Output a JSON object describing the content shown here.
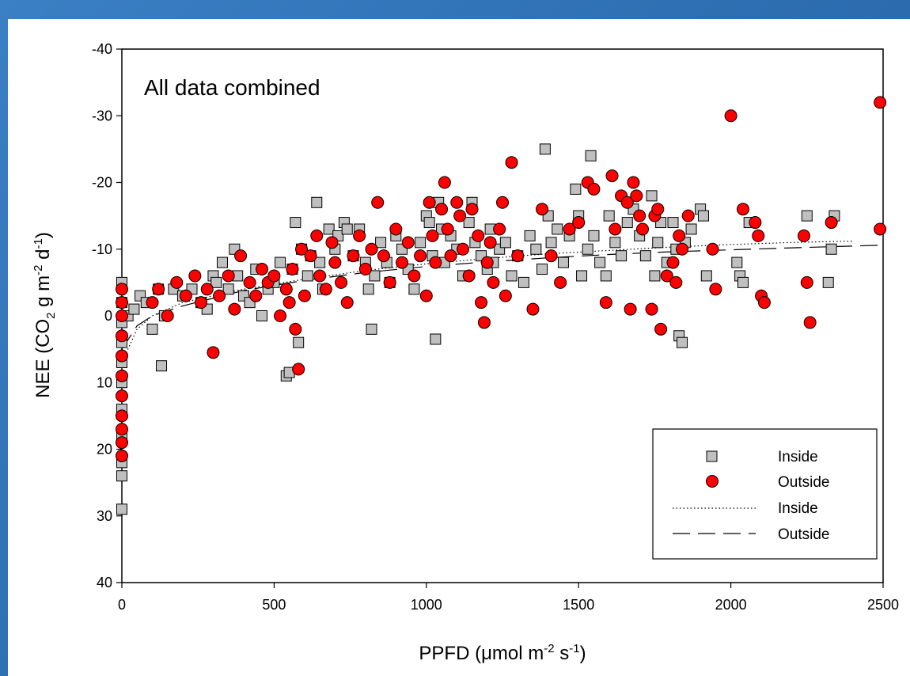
{
  "chart_data": {
    "type": "scatter",
    "annotation": "All data combined",
    "xlabel": {
      "base": "PPFD (",
      "mu": "μ",
      "rest": "mol m",
      "sup1": "-2",
      "mid": " s",
      "sup2": "-1",
      "end": ")"
    },
    "ylabel": {
      "pre": "NEE (CO",
      "sub": "2",
      "mid1": " g m",
      "sup1": "-2",
      "mid2": " d",
      "sup2": "-1",
      "end": ")"
    },
    "xlim": [
      0,
      2500
    ],
    "ylim": [
      -40,
      40
    ],
    "y_inverted": true,
    "x_ticks": [
      "0",
      "500",
      "1000",
      "1500",
      "2000",
      "2500"
    ],
    "y_ticks": [
      "-40",
      "-30",
      "-20",
      "-10",
      "0",
      "10",
      "20",
      "30",
      "40"
    ],
    "grid": false,
    "legend_position": "bottom-right",
    "colors": {
      "inside_fill": "#c0c0c0",
      "outside_fill": "#ff0000",
      "marker_edge": "#000000",
      "background": "#2f6fb0"
    },
    "series": [
      {
        "name": "Inside",
        "kind": "points",
        "marker": "square",
        "points": [
          [
            0,
            29
          ],
          [
            0,
            24
          ],
          [
            0,
            22
          ],
          [
            0,
            18
          ],
          [
            0,
            14
          ],
          [
            0,
            10
          ],
          [
            0,
            7
          ],
          [
            0,
            4
          ],
          [
            0,
            1
          ],
          [
            0,
            -2
          ],
          [
            0,
            -5
          ],
          [
            20,
            0
          ],
          [
            40,
            -1
          ],
          [
            60,
            -3
          ],
          [
            80,
            -2
          ],
          [
            100,
            2
          ],
          [
            120,
            -4
          ],
          [
            130,
            7.5
          ],
          [
            140,
            0
          ],
          [
            170,
            -4
          ],
          [
            200,
            -3
          ],
          [
            230,
            -4
          ],
          [
            260,
            -2
          ],
          [
            280,
            -1
          ],
          [
            300,
            -6
          ],
          [
            310,
            -5
          ],
          [
            330,
            -8
          ],
          [
            350,
            -4
          ],
          [
            370,
            -10
          ],
          [
            380,
            -6
          ],
          [
            400,
            -3
          ],
          [
            420,
            -2
          ],
          [
            440,
            -7
          ],
          [
            460,
            0
          ],
          [
            480,
            -4
          ],
          [
            500,
            -5
          ],
          [
            520,
            -8
          ],
          [
            540,
            9
          ],
          [
            550,
            8.5
          ],
          [
            560,
            -7
          ],
          [
            570,
            -14
          ],
          [
            580,
            4
          ],
          [
            590,
            -10
          ],
          [
            610,
            -6
          ],
          [
            620,
            -9
          ],
          [
            640,
            -17
          ],
          [
            650,
            -8
          ],
          [
            660,
            -4
          ],
          [
            680,
            -13
          ],
          [
            700,
            -10
          ],
          [
            710,
            -12
          ],
          [
            730,
            -14
          ],
          [
            740,
            -13
          ],
          [
            760,
            -9
          ],
          [
            780,
            -13
          ],
          [
            800,
            -8
          ],
          [
            810,
            -4
          ],
          [
            820,
            2
          ],
          [
            830,
            -6
          ],
          [
            850,
            -11
          ],
          [
            870,
            -8
          ],
          [
            880,
            -5
          ],
          [
            900,
            -12
          ],
          [
            920,
            -10
          ],
          [
            940,
            -7
          ],
          [
            960,
            -4
          ],
          [
            980,
            -11
          ],
          [
            1000,
            -15
          ],
          [
            1010,
            -14
          ],
          [
            1020,
            -9
          ],
          [
            1030,
            3.5
          ],
          [
            1040,
            -17
          ],
          [
            1050,
            -13
          ],
          [
            1060,
            -8
          ],
          [
            1080,
            -12
          ],
          [
            1100,
            -10
          ],
          [
            1120,
            -6
          ],
          [
            1140,
            -14
          ],
          [
            1150,
            -17
          ],
          [
            1160,
            -11
          ],
          [
            1180,
            -9
          ],
          [
            1200,
            -7
          ],
          [
            1210,
            -13
          ],
          [
            1220,
            -8
          ],
          [
            1240,
            -10
          ],
          [
            1260,
            -11
          ],
          [
            1280,
            -6
          ],
          [
            1300,
            -9
          ],
          [
            1320,
            -5
          ],
          [
            1340,
            -12
          ],
          [
            1360,
            -10
          ],
          [
            1380,
            -7
          ],
          [
            1390,
            -25
          ],
          [
            1400,
            -15
          ],
          [
            1410,
            -11
          ],
          [
            1430,
            -13
          ],
          [
            1450,
            -8
          ],
          [
            1470,
            -12
          ],
          [
            1490,
            -19
          ],
          [
            1500,
            -15
          ],
          [
            1510,
            -6
          ],
          [
            1530,
            -10
          ],
          [
            1540,
            -24
          ],
          [
            1550,
            -12
          ],
          [
            1570,
            -8
          ],
          [
            1590,
            -6
          ],
          [
            1600,
            -15
          ],
          [
            1620,
            -11
          ],
          [
            1640,
            -9
          ],
          [
            1660,
            -14
          ],
          [
            1680,
            -16
          ],
          [
            1700,
            -12
          ],
          [
            1720,
            -9
          ],
          [
            1740,
            -18
          ],
          [
            1750,
            -6
          ],
          [
            1760,
            -11
          ],
          [
            1770,
            -14
          ],
          [
            1790,
            -8
          ],
          [
            1810,
            -14
          ],
          [
            1820,
            -10
          ],
          [
            1830,
            3
          ],
          [
            1840,
            4
          ],
          [
            1850,
            -11
          ],
          [
            1870,
            -13
          ],
          [
            1900,
            -16
          ],
          [
            1910,
            -15
          ],
          [
            1920,
            -6
          ],
          [
            2020,
            -8
          ],
          [
            2030,
            -6
          ],
          [
            2040,
            -5
          ],
          [
            2060,
            -14
          ],
          [
            2250,
            -15
          ],
          [
            2320,
            -5
          ],
          [
            2330,
            -10
          ],
          [
            2340,
            -15
          ]
        ]
      },
      {
        "name": "Outside",
        "kind": "points",
        "marker": "circle",
        "points": [
          [
            0,
            21
          ],
          [
            0,
            19
          ],
          [
            0,
            17
          ],
          [
            0,
            15
          ],
          [
            0,
            12
          ],
          [
            0,
            9
          ],
          [
            0,
            6
          ],
          [
            0,
            3
          ],
          [
            0,
            0
          ],
          [
            0,
            -2
          ],
          [
            0,
            -4
          ],
          [
            100,
            -2
          ],
          [
            120,
            -4
          ],
          [
            150,
            0
          ],
          [
            180,
            -5
          ],
          [
            210,
            -3
          ],
          [
            240,
            -6
          ],
          [
            260,
            -2
          ],
          [
            280,
            -4
          ],
          [
            300,
            5.5
          ],
          [
            320,
            -3
          ],
          [
            350,
            -6
          ],
          [
            370,
            -1
          ],
          [
            390,
            -9
          ],
          [
            420,
            -5
          ],
          [
            440,
            -3
          ],
          [
            460,
            -7
          ],
          [
            480,
            -5
          ],
          [
            500,
            -6
          ],
          [
            520,
            0
          ],
          [
            540,
            -4
          ],
          [
            550,
            -2
          ],
          [
            560,
            -7
          ],
          [
            570,
            2
          ],
          [
            580,
            8
          ],
          [
            590,
            -10
          ],
          [
            600,
            -3
          ],
          [
            620,
            -9
          ],
          [
            640,
            -12
          ],
          [
            650,
            -6
          ],
          [
            670,
            -4
          ],
          [
            690,
            -11
          ],
          [
            700,
            -8
          ],
          [
            720,
            -5
          ],
          [
            740,
            -2
          ],
          [
            760,
            -9
          ],
          [
            780,
            -12
          ],
          [
            800,
            -7
          ],
          [
            820,
            -10
          ],
          [
            840,
            -17
          ],
          [
            860,
            -9
          ],
          [
            880,
            -5
          ],
          [
            900,
            -13
          ],
          [
            920,
            -8
          ],
          [
            940,
            -11
          ],
          [
            960,
            -6
          ],
          [
            980,
            -9
          ],
          [
            1000,
            -3
          ],
          [
            1010,
            -17
          ],
          [
            1020,
            -12
          ],
          [
            1030,
            -8
          ],
          [
            1050,
            -16
          ],
          [
            1060,
            -20
          ],
          [
            1070,
            -13
          ],
          [
            1080,
            -9
          ],
          [
            1100,
            -17
          ],
          [
            1110,
            -15
          ],
          [
            1120,
            -10
          ],
          [
            1140,
            -6
          ],
          [
            1150,
            -16
          ],
          [
            1170,
            -12
          ],
          [
            1180,
            -2
          ],
          [
            1190,
            1
          ],
          [
            1200,
            -8
          ],
          [
            1210,
            -11
          ],
          [
            1220,
            -5
          ],
          [
            1240,
            -13
          ],
          [
            1250,
            -17
          ],
          [
            1260,
            -3
          ],
          [
            1280,
            -23
          ],
          [
            1300,
            -9
          ],
          [
            1350,
            -1
          ],
          [
            1380,
            -16
          ],
          [
            1410,
            -9
          ],
          [
            1440,
            -5
          ],
          [
            1470,
            -13
          ],
          [
            1500,
            -14
          ],
          [
            1530,
            -20
          ],
          [
            1550,
            -19
          ],
          [
            1590,
            -2
          ],
          [
            1610,
            -21
          ],
          [
            1620,
            -13
          ],
          [
            1640,
            -18
          ],
          [
            1660,
            -17
          ],
          [
            1670,
            -1
          ],
          [
            1680,
            -20
          ],
          [
            1690,
            -18
          ],
          [
            1700,
            -15
          ],
          [
            1710,
            -13
          ],
          [
            1740,
            -1
          ],
          [
            1750,
            -15
          ],
          [
            1760,
            -16
          ],
          [
            1770,
            2
          ],
          [
            1790,
            -6
          ],
          [
            1810,
            -8
          ],
          [
            1820,
            -5
          ],
          [
            1830,
            -12
          ],
          [
            1840,
            -10
          ],
          [
            1860,
            -15
          ],
          [
            1940,
            -10
          ],
          [
            1950,
            -4
          ],
          [
            2000,
            -30
          ],
          [
            2040,
            -16
          ],
          [
            2080,
            -14
          ],
          [
            2090,
            -12
          ],
          [
            2100,
            -3
          ],
          [
            2110,
            -2
          ],
          [
            2240,
            -12
          ],
          [
            2250,
            -5
          ],
          [
            2260,
            1
          ],
          [
            2330,
            -14
          ],
          [
            2490,
            -32
          ],
          [
            2490,
            -13
          ]
        ]
      },
      {
        "name": "Inside",
        "kind": "line",
        "style": "dotted",
        "points": [
          [
            0,
            7
          ],
          [
            50,
            2
          ],
          [
            100,
            0
          ],
          [
            200,
            -2
          ],
          [
            400,
            -4
          ],
          [
            600,
            -5.5
          ],
          [
            800,
            -6.8
          ],
          [
            1000,
            -7.8
          ],
          [
            1200,
            -8.6
          ],
          [
            1400,
            -9.3
          ],
          [
            1600,
            -9.8
          ],
          [
            1800,
            -10.3
          ],
          [
            2000,
            -10.7
          ],
          [
            2200,
            -11
          ],
          [
            2400,
            -11.2
          ]
        ]
      },
      {
        "name": "Outside",
        "kind": "line",
        "style": "dashed",
        "points": [
          [
            0,
            5
          ],
          [
            50,
            1.5
          ],
          [
            100,
            0
          ],
          [
            200,
            -1.5
          ],
          [
            400,
            -3.8
          ],
          [
            600,
            -5.3
          ],
          [
            800,
            -6.5
          ],
          [
            1000,
            -7.4
          ],
          [
            1200,
            -8.1
          ],
          [
            1400,
            -8.7
          ],
          [
            1600,
            -9.2
          ],
          [
            1800,
            -9.6
          ],
          [
            2000,
            -9.9
          ],
          [
            2200,
            -10.2
          ],
          [
            2500,
            -10.6
          ]
        ]
      }
    ]
  }
}
